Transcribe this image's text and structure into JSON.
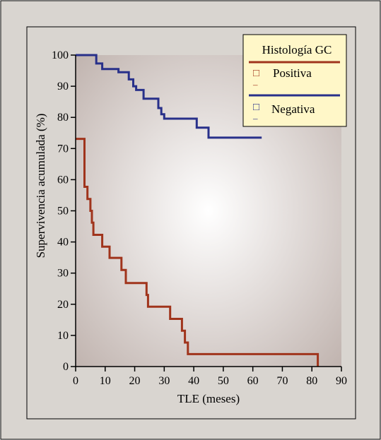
{
  "colors": {
    "outer_frame": "#d9d5d0",
    "plot_center": "#ffffff",
    "plot_edge": "#bfb2ad",
    "positiva": "#a0341c",
    "negativa": "#28308a",
    "legend_bg": "#fff7c8"
  },
  "chart_data": {
    "type": "line",
    "step": true,
    "title": "",
    "xlabel": "TLE (meses)",
    "ylabel": "Supervivencia acumulada (%)",
    "xlim": [
      0,
      90
    ],
    "ylim": [
      0,
      100
    ],
    "xticks": [
      0,
      10,
      20,
      30,
      40,
      50,
      60,
      70,
      80,
      90
    ],
    "yticks": [
      0,
      10,
      20,
      30,
      40,
      50,
      60,
      70,
      80,
      90,
      100
    ],
    "grid": false,
    "legend": {
      "title": "Histología GC",
      "placement": "top-right",
      "entries": [
        "Positiva",
        "Negativa"
      ],
      "censor_marks": [
        "□",
        "□"
      ],
      "dashes": [
        "–",
        "–"
      ]
    },
    "series": [
      {
        "name": "Positiva",
        "points": [
          [
            0,
            73.1
          ],
          [
            3,
            73.1
          ],
          [
            3,
            57.7
          ],
          [
            4,
            57.7
          ],
          [
            4,
            53.8
          ],
          [
            5,
            53.8
          ],
          [
            5,
            50.0
          ],
          [
            5.5,
            50.0
          ],
          [
            5.5,
            46.2
          ],
          [
            6,
            46.2
          ],
          [
            6,
            42.3
          ],
          [
            9,
            42.3
          ],
          [
            9,
            38.5
          ],
          [
            11.5,
            38.5
          ],
          [
            11.5,
            34.9
          ],
          [
            15.5,
            34.9
          ],
          [
            15.5,
            31.0
          ],
          [
            17,
            31.0
          ],
          [
            17,
            26.8
          ],
          [
            24,
            26.8
          ],
          [
            24,
            23.0
          ],
          [
            24.5,
            23.0
          ],
          [
            24.5,
            19.2
          ],
          [
            32,
            19.2
          ],
          [
            32,
            15.3
          ],
          [
            36,
            15.3
          ],
          [
            36,
            11.5
          ],
          [
            37,
            11.5
          ],
          [
            37,
            7.7
          ],
          [
            38,
            7.7
          ],
          [
            38,
            4.0
          ],
          [
            82,
            4.0
          ],
          [
            82,
            0
          ]
        ]
      },
      {
        "name": "Negativa",
        "points": [
          [
            0,
            100
          ],
          [
            7,
            100
          ],
          [
            7,
            97.3
          ],
          [
            9,
            97.3
          ],
          [
            9,
            95.5
          ],
          [
            14.5,
            95.5
          ],
          [
            14.5,
            94.5
          ],
          [
            18,
            94.5
          ],
          [
            18,
            92.2
          ],
          [
            19.5,
            92.2
          ],
          [
            19.5,
            90.0
          ],
          [
            20.5,
            90.0
          ],
          [
            20.5,
            88.8
          ],
          [
            23,
            88.8
          ],
          [
            23,
            86.0
          ],
          [
            28,
            86.0
          ],
          [
            28,
            83.0
          ],
          [
            29,
            83.0
          ],
          [
            29,
            81.0
          ],
          [
            30,
            81.0
          ],
          [
            30,
            79.6
          ],
          [
            41,
            79.6
          ],
          [
            41,
            76.7
          ],
          [
            45,
            76.7
          ],
          [
            45,
            73.5
          ],
          [
            63,
            73.5
          ]
        ]
      }
    ]
  }
}
